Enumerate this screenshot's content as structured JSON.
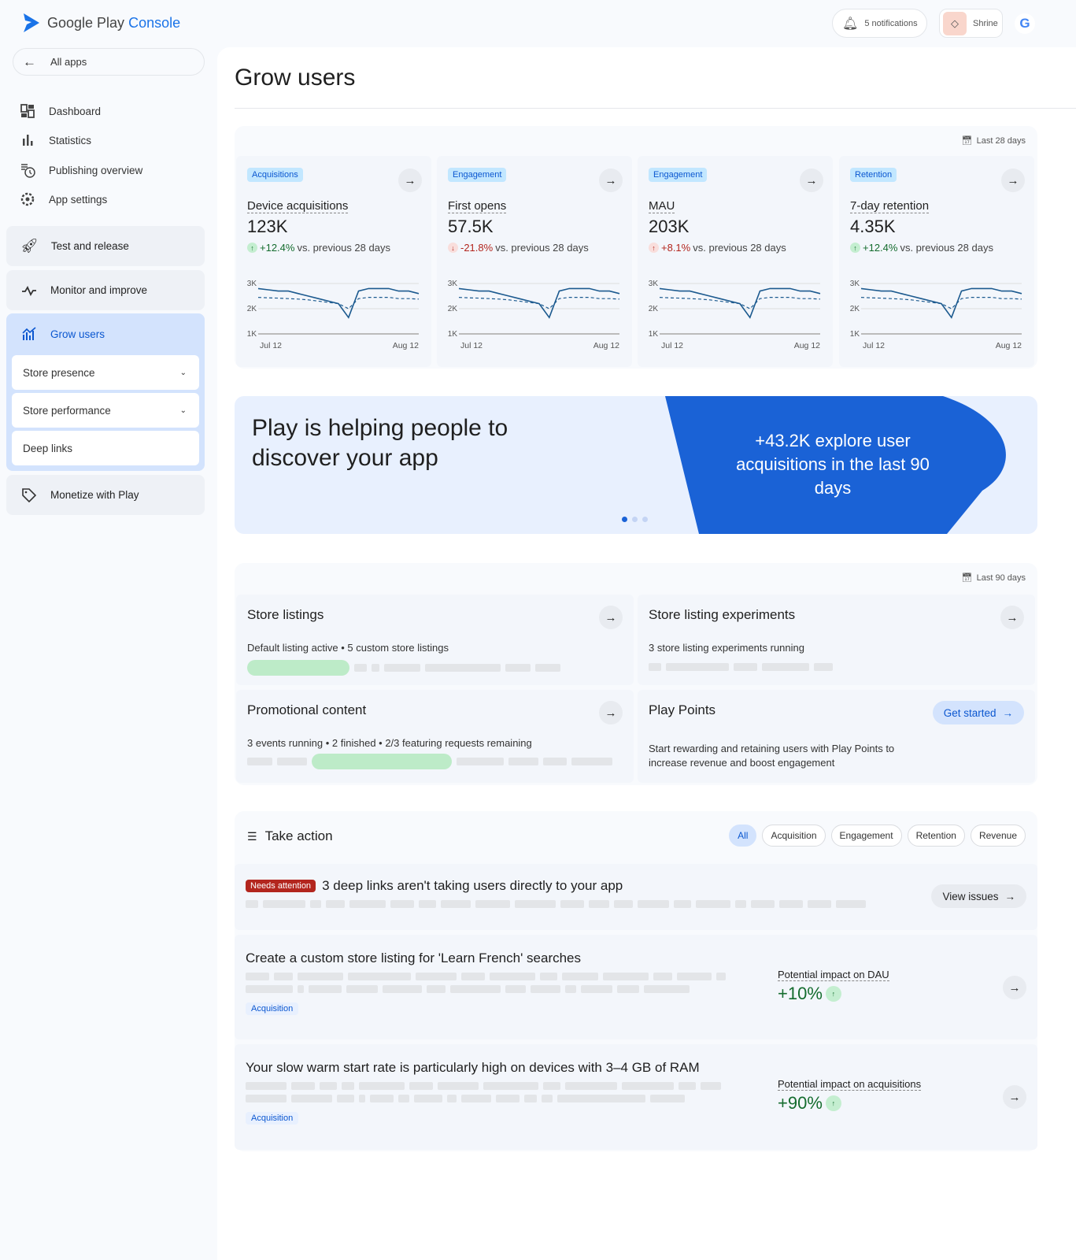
{
  "app": {
    "logo_prefix": "Google Play",
    "logo_suffix": "Console"
  },
  "header": {
    "notifications": "5 notifications",
    "app_name": "Shrine"
  },
  "sidebar": {
    "all_apps": "All apps",
    "items": [
      {
        "label": "Dashboard",
        "icon": "dashboard-icon"
      },
      {
        "label": "Statistics",
        "icon": "bar-chart-icon"
      },
      {
        "label": "Publishing overview",
        "icon": "publishing-icon"
      },
      {
        "label": "App settings",
        "icon": "gear-icon"
      }
    ],
    "sections": [
      {
        "label": "Test and release",
        "icon": "rocket-icon"
      },
      {
        "label": "Monitor and improve",
        "icon": "pulse-icon"
      },
      {
        "label": "Grow users",
        "icon": "growth-icon"
      },
      {
        "label": "Monetize with Play",
        "icon": "tag-icon"
      }
    ],
    "grow_sub": [
      {
        "label": "Store presence"
      },
      {
        "label": "Store performance"
      },
      {
        "label": "Deep links"
      }
    ]
  },
  "page": {
    "title": "Grow users"
  },
  "metrics": {
    "range": "Last 28 days",
    "y_ticks": [
      "3K",
      "2K",
      "1K"
    ],
    "x_ticks": [
      "Jul 12",
      "Aug 12"
    ],
    "cards": [
      {
        "chip": "Acquisitions",
        "label": "Device acquisitions",
        "value": "123K",
        "delta": "+12.4%",
        "direction": "up",
        "suffix": "vs. previous 28 days"
      },
      {
        "chip": "Engagement",
        "label": "First opens",
        "value": "57.5K",
        "delta": "-21.8%",
        "direction": "down",
        "suffix": "vs. previous 28 days"
      },
      {
        "chip": "Engagement",
        "label": "MAU",
        "value": "203K",
        "delta": "+8.1%",
        "direction": "up-warning",
        "suffix": "vs. previous 28 days"
      },
      {
        "chip": "Retention",
        "label": "7-day retention",
        "value": "4.35K",
        "delta": "+12.4%",
        "direction": "up",
        "suffix": "vs. previous 28 days"
      }
    ],
    "series_current": [
      2.8,
      2.75,
      2.7,
      2.7,
      2.6,
      2.5,
      2.4,
      2.3,
      2.2,
      1.65,
      2.7,
      2.8,
      2.8,
      2.8,
      2.7,
      2.7,
      2.6
    ],
    "series_previous": [
      2.45,
      2.43,
      2.42,
      2.4,
      2.38,
      2.35,
      2.3,
      2.25,
      2.2,
      2.0,
      2.4,
      2.45,
      2.45,
      2.45,
      2.4,
      2.4,
      2.38
    ],
    "ylim": [
      1,
      3
    ]
  },
  "banner": {
    "headline": "Play is helping people to discover your app",
    "stat": "+43.2K explore user acquisitions in the last 90 days",
    "color": "#1a62d6",
    "pages": 3,
    "active_page": 1
  },
  "store": {
    "range": "Last 90 days",
    "listings": {
      "title": "Store listings",
      "desc": "Default listing active • 5 custom store listings"
    },
    "experiments": {
      "title": "Store listing experiments",
      "desc": "3 store listing experiments running"
    },
    "promo": {
      "title": "Promotional content",
      "desc": "3 events running • 2 finished • 2/3 featuring requests remaining"
    },
    "points": {
      "title": "Play Points",
      "desc": "Start rewarding and retaining users with Play Points to increase revenue and boost engagement",
      "cta": "Get started"
    }
  },
  "take_action": {
    "title": "Take action",
    "filters": [
      "All",
      "Acquisition",
      "Engagement",
      "Retention",
      "Revenue"
    ],
    "items": [
      {
        "badge": "Needs attention",
        "title": "3 deep links aren't taking users directly to your app",
        "cta": "View issues"
      },
      {
        "title": "Create a custom store listing for 'Learn French' searches",
        "tag": "Acquisition",
        "impact_label": "Potential impact on DAU",
        "impact": "+10%"
      },
      {
        "title": "Your slow warm start rate is particularly high on devices with 3–4 GB of RAM",
        "tag": "Acquisition",
        "impact_label": "Potential impact on acquisitions",
        "impact": "+90%"
      }
    ]
  }
}
